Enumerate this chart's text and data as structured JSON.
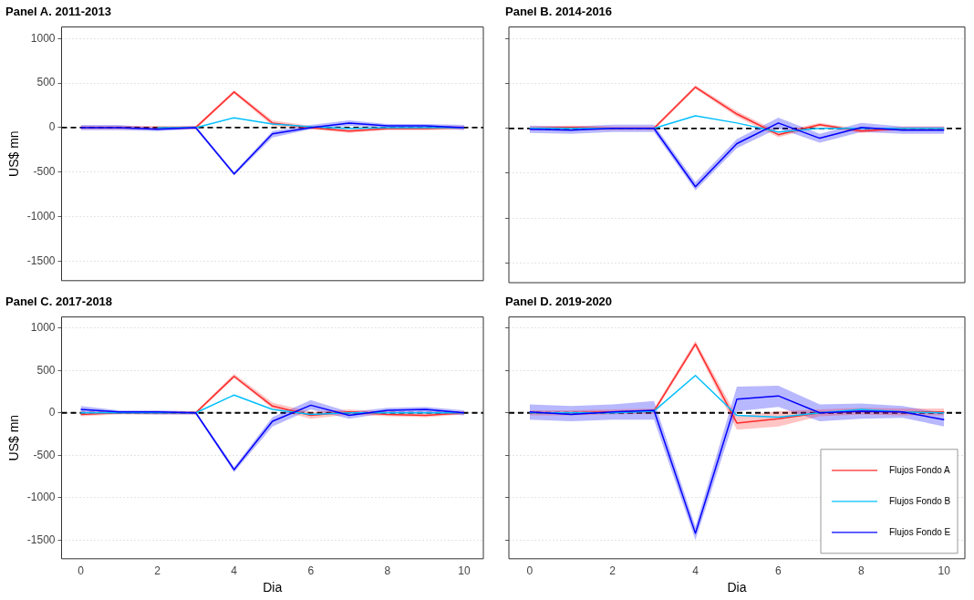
{
  "chart_data": [
    {
      "type": "line",
      "title": "Panel A. 2011-2013",
      "ylabel": "US$ mn",
      "x": [
        0,
        1,
        2,
        3,
        4,
        5,
        6,
        7,
        8,
        9,
        10
      ],
      "xlim": [
        -0.5,
        10.5
      ],
      "xticks": [
        0,
        2,
        4,
        6,
        8,
        10
      ],
      "ylim": [
        -1720,
        1130
      ],
      "yticks": [
        -1500,
        -1000,
        -500,
        0,
        500,
        1000
      ],
      "grid": "y",
      "legend": false,
      "tick_labels": "y",
      "line_style": "solid",
      "marker": "none",
      "ref_lines": [
        {
          "axis": "y",
          "value": 0,
          "color": "#000000",
          "line_style": "dashed"
        }
      ],
      "series": [
        {
          "color": "#ff2a2a",
          "values": [
            null,
            null,
            0,
            0,
            400,
            50,
            0,
            -40,
            -10,
            -10,
            0
          ],
          "lower": [
            -20,
            -20,
            -20,
            -20,
            380,
            20,
            -20,
            -60,
            -30,
            -30,
            -20
          ],
          "upper": [
            20,
            20,
            20,
            20,
            420,
            80,
            20,
            -20,
            10,
            10,
            20
          ]
        },
        {
          "color": "#00bfff",
          "values": [
            null,
            null,
            0,
            0,
            110,
            40,
            10,
            -10,
            0,
            0,
            0
          ]
        },
        {
          "color": "#0000ff",
          "values": [
            0,
            0,
            -20,
            0,
            -520,
            -70,
            0,
            50,
            20,
            20,
            0
          ],
          "lower": [
            -30,
            -30,
            -40,
            -20,
            -540,
            -110,
            -20,
            20,
            0,
            0,
            -30
          ],
          "upper": [
            30,
            30,
            0,
            20,
            -500,
            -40,
            30,
            80,
            40,
            40,
            30
          ]
        }
      ]
    },
    {
      "type": "line",
      "title": "Panel B. 2014-2016",
      "x": [
        0,
        1,
        2,
        3,
        4,
        5,
        6,
        7,
        8,
        9,
        10
      ],
      "xlim": [
        -0.5,
        10.5
      ],
      "xticks": [
        0,
        2,
        4,
        6,
        8,
        10
      ],
      "ylim": [
        -1720,
        1130
      ],
      "yticks": [
        -1500,
        -1000,
        -500,
        0,
        500,
        1000
      ],
      "grid": "y",
      "legend": false,
      "tick_labels": false,
      "line_style": "solid",
      "marker": "none",
      "ref_lines": [
        {
          "axis": "y",
          "value": 0,
          "color": "#000000",
          "line_style": "dashed"
        }
      ],
      "series": [
        {
          "color": "#ff2a2a",
          "values": [
            0,
            10,
            0,
            0,
            460,
            160,
            -70,
            40,
            -30,
            0,
            0
          ],
          "lower": [
            -20,
            -10,
            -20,
            -20,
            440,
            130,
            -100,
            20,
            -50,
            -20,
            -20
          ],
          "upper": [
            20,
            30,
            20,
            20,
            480,
            190,
            -40,
            60,
            -10,
            20,
            20
          ]
        },
        {
          "color": "#00bfff",
          "values": [
            0,
            0,
            0,
            0,
            140,
            60,
            -40,
            0,
            0,
            0,
            0
          ]
        },
        {
          "color": "#0000ff",
          "values": [
            -10,
            -20,
            0,
            0,
            -650,
            -170,
            60,
            -110,
            10,
            -20,
            -20
          ],
          "lower": [
            -50,
            -60,
            -40,
            -40,
            -690,
            -220,
            0,
            -160,
            -40,
            -60,
            -60
          ],
          "upper": [
            30,
            20,
            40,
            40,
            -600,
            -120,
            120,
            -60,
            60,
            20,
            20
          ]
        }
      ]
    },
    {
      "type": "line",
      "title": "Panel C. 2017-2018",
      "xlabel": "Dia",
      "ylabel": "US$ mn",
      "x": [
        0,
        1,
        2,
        3,
        4,
        5,
        6,
        7,
        8,
        9,
        10
      ],
      "xlim": [
        -0.5,
        10.5
      ],
      "xticks": [
        0,
        2,
        4,
        6,
        8,
        10
      ],
      "ylim": [
        -1720,
        1130
      ],
      "yticks": [
        -1500,
        -1000,
        -500,
        0,
        500,
        1000
      ],
      "grid": "y",
      "legend": false,
      "line_style": "solid",
      "marker": "none",
      "ref_lines": [
        {
          "axis": "y",
          "value": 0,
          "color": "#000000",
          "line_style": "dashed"
        }
      ],
      "series": [
        {
          "color": "#ff2a2a",
          "values": [
            -20,
            0,
            0,
            0,
            430,
            80,
            -30,
            10,
            -20,
            -30,
            0
          ],
          "lower": [
            -40,
            -20,
            -20,
            -20,
            410,
            50,
            -70,
            -20,
            -40,
            -50,
            -20
          ],
          "upper": [
            0,
            20,
            20,
            20,
            460,
            120,
            10,
            40,
            10,
            0,
            20
          ]
        },
        {
          "color": "#00bfff",
          "values": [
            0,
            0,
            0,
            0,
            210,
            40,
            -20,
            0,
            0,
            0,
            0
          ]
        },
        {
          "color": "#0000ff",
          "values": [
            40,
            10,
            10,
            0,
            -670,
            -100,
            90,
            -30,
            30,
            40,
            0
          ],
          "lower": [
            0,
            -10,
            -20,
            -20,
            -700,
            -160,
            40,
            -70,
            0,
            0,
            -30
          ],
          "upper": [
            80,
            30,
            30,
            20,
            -640,
            -50,
            150,
            10,
            60,
            70,
            30
          ]
        }
      ]
    },
    {
      "type": "line",
      "title": "Panel D. 2019-2020",
      "xlabel": "Dia",
      "x": [
        0,
        1,
        2,
        3,
        4,
        5,
        6,
        7,
        8,
        9,
        10
      ],
      "xlim": [
        -0.5,
        10.5
      ],
      "xticks": [
        0,
        2,
        4,
        6,
        8,
        10
      ],
      "ylim": [
        -1720,
        1130
      ],
      "yticks": [
        -1500,
        -1000,
        -500,
        0,
        500,
        1000
      ],
      "grid": "y",
      "legend": "bottom right",
      "tick_labels": "x",
      "line_style": "solid",
      "marker": "none",
      "ref_lines": [
        {
          "axis": "y",
          "value": 0,
          "color": "#000000",
          "line_style": "dashed"
        }
      ],
      "series": [
        {
          "name": "Flujos Fondo A",
          "color": "#ff2a2a",
          "values": [
            0,
            0,
            10,
            20,
            810,
            -120,
            -70,
            0,
            20,
            10,
            10
          ],
          "lower": [
            -30,
            -30,
            -20,
            -10,
            780,
            -200,
            -160,
            -40,
            -20,
            -30,
            -30
          ],
          "upper": [
            30,
            30,
            40,
            50,
            850,
            -40,
            20,
            40,
            60,
            50,
            50
          ]
        },
        {
          "name": "Flujos Fondo B",
          "color": "#00bfff",
          "values": [
            0,
            0,
            0,
            20,
            440,
            -30,
            -50,
            0,
            40,
            10,
            0
          ]
        },
        {
          "name": "Flujos Fondo E",
          "color": "#0000ff",
          "values": [
            10,
            -20,
            10,
            30,
            -1420,
            160,
            200,
            0,
            20,
            10,
            -80
          ],
          "lower": [
            -80,
            -100,
            -80,
            -80,
            -1500,
            20,
            70,
            -100,
            -70,
            -60,
            -160
          ],
          "upper": [
            100,
            80,
            100,
            140,
            -1340,
            310,
            320,
            100,
            110,
            80,
            0
          ]
        }
      ]
    }
  ]
}
